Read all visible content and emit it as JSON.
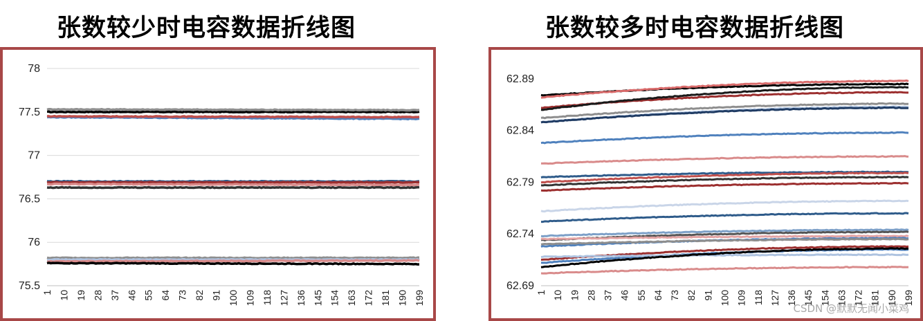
{
  "chart_data": [
    {
      "type": "line",
      "title": "张数较少时电容数据折线图",
      "xlabel": "",
      "ylabel": "",
      "ylim": [
        75.5,
        78
      ],
      "y_ticks": [
        "75.5",
        "76",
        "76.5",
        "77",
        "77.5",
        "78"
      ],
      "x_ticks": [
        "1",
        "10",
        "19",
        "28",
        "37",
        "46",
        "55",
        "64",
        "73",
        "82",
        "91",
        "100",
        "109",
        "118",
        "127",
        "136",
        "145",
        "154",
        "163",
        "172",
        "181",
        "190",
        "199"
      ],
      "grid": "horizontal",
      "legend": "none",
      "series": [
        {
          "color": "#000000",
          "start": 77.5,
          "end": 77.5
        },
        {
          "color": "#8e8e8e",
          "start": 77.53,
          "end": 77.52
        },
        {
          "color": "#4f81bd",
          "start": 77.44,
          "end": 77.42
        },
        {
          "color": "#c0504d",
          "start": 77.45,
          "end": 77.44
        },
        {
          "color": "#2e5b8a",
          "start": 76.7,
          "end": 76.7
        },
        {
          "color": "#9c2f2f",
          "start": 76.69,
          "end": 76.69
        },
        {
          "color": "#d98b8b",
          "start": 76.67,
          "end": 76.66
        },
        {
          "color": "#333333",
          "start": 76.63,
          "end": 76.63
        },
        {
          "color": "#8e8e8e",
          "start": 75.82,
          "end": 75.82
        },
        {
          "color": "#aec3e0",
          "start": 75.8,
          "end": 75.8
        },
        {
          "color": "#d98b8b",
          "start": 75.78,
          "end": 75.79
        },
        {
          "color": "#000000",
          "start": 75.76,
          "end": 75.75
        }
      ]
    },
    {
      "type": "line",
      "title": "张数较多时电容数据折线图",
      "xlabel": "",
      "ylabel": "",
      "ylim": [
        62.69,
        62.9
      ],
      "y_ticks": [
        "62.69",
        "62.74",
        "62.79",
        "62.84",
        "62.89"
      ],
      "x_ticks": [
        "1",
        "10",
        "19",
        "28",
        "37",
        "46",
        "55",
        "64",
        "73",
        "82",
        "91",
        "100",
        "109",
        "118",
        "127",
        "136",
        "145",
        "154",
        "163",
        "172",
        "181",
        "190",
        "199"
      ],
      "grid": "none",
      "legend": "none",
      "series": [
        {
          "color": "#000000",
          "start": 62.874,
          "end": 62.885
        },
        {
          "color": "#d96b6b",
          "start": 62.872,
          "end": 62.888
        },
        {
          "color": "#9c2f2f",
          "start": 62.862,
          "end": 62.877
        },
        {
          "color": "#1a1a1a",
          "start": 62.86,
          "end": 62.882
        },
        {
          "color": "#8e8e8e",
          "start": 62.852,
          "end": 62.866
        },
        {
          "color": "#aec3e0",
          "start": 62.848,
          "end": 62.863
        },
        {
          "color": "#1f3b63",
          "start": 62.848,
          "end": 62.862
        },
        {
          "color": "#4f81bd",
          "start": 62.828,
          "end": 62.838
        },
        {
          "color": "#d98b8b",
          "start": 62.808,
          "end": 62.815
        },
        {
          "color": "#2e5b8a",
          "start": 62.795,
          "end": 62.8
        },
        {
          "color": "#c0504d",
          "start": 62.79,
          "end": 62.799
        },
        {
          "color": "#333333",
          "start": 62.787,
          "end": 62.795
        },
        {
          "color": "#9c2f2f",
          "start": 62.782,
          "end": 62.789
        },
        {
          "color": "#c9d5e8",
          "start": 62.762,
          "end": 62.772
        },
        {
          "color": "#2e5b8a",
          "start": 62.752,
          "end": 62.76
        },
        {
          "color": "#7da0c8",
          "start": 62.738,
          "end": 62.744
        },
        {
          "color": "#555555",
          "start": 62.734,
          "end": 62.742
        },
        {
          "color": "#e3a3a3",
          "start": 62.735,
          "end": 62.738
        },
        {
          "color": "#4f81bd",
          "start": 62.728,
          "end": 62.736
        },
        {
          "color": "#8e8e8e",
          "start": 62.73,
          "end": 62.735
        },
        {
          "color": "#9c2f2f",
          "start": 62.715,
          "end": 62.728
        },
        {
          "color": "#4f81bd",
          "start": 62.712,
          "end": 62.725
        },
        {
          "color": "#aec3e0",
          "start": 62.718,
          "end": 62.72
        },
        {
          "color": "#000000",
          "start": 62.708,
          "end": 62.726
        },
        {
          "color": "#d98b8b",
          "start": 62.702,
          "end": 62.708
        }
      ]
    }
  ],
  "watermark": "CSDN @默默无闻小菜鸡"
}
